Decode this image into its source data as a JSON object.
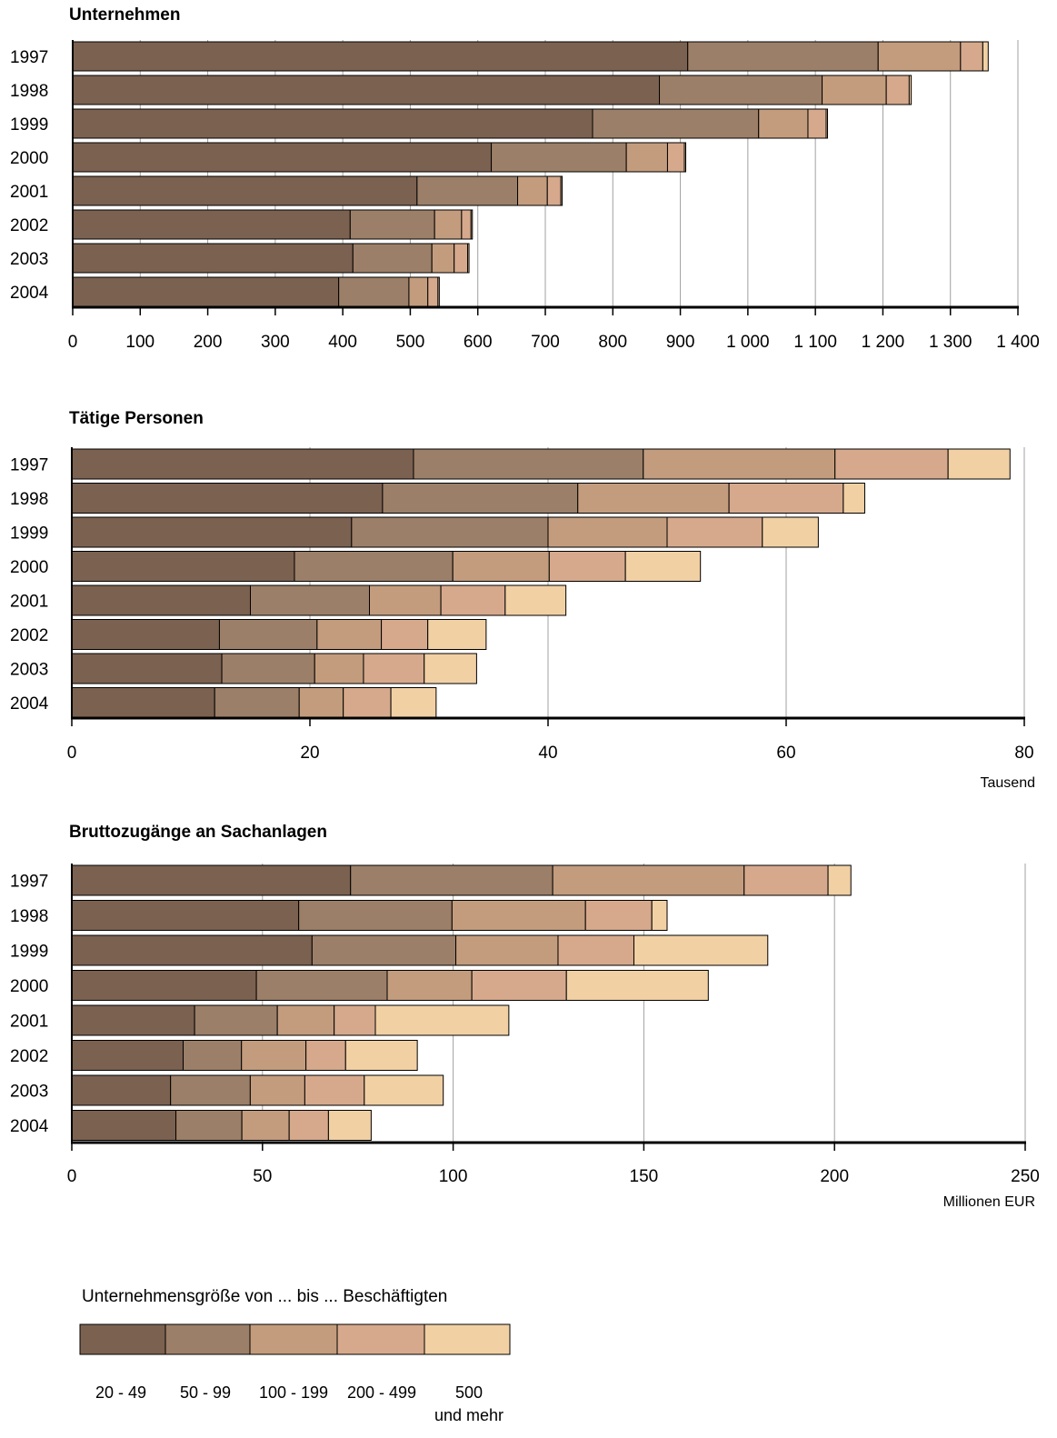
{
  "colors": [
    "#7b6150",
    "#9c7f68",
    "#c39c7d",
    "#d6a98c",
    "#f1d0a4"
  ],
  "legend": {
    "title": "Unternehmensgröße von ... bis ... Beschäftigten",
    "items": [
      {
        "label": "20 - 49"
      },
      {
        "label": "50 - 99"
      },
      {
        "label": "100 - 199"
      },
      {
        "label": "200 - 499"
      },
      {
        "label": "500",
        "label2": "und mehr"
      }
    ]
  },
  "chart_data": [
    {
      "type": "bar",
      "title": "Unternehmen",
      "unit": "",
      "categories": [
        "1997",
        "1998",
        "1999",
        "2000",
        "2001",
        "2002",
        "2003",
        "2004"
      ],
      "xlim": [
        0,
        1400
      ],
      "ticks": [
        0,
        100,
        200,
        300,
        400,
        500,
        600,
        700,
        800,
        900,
        1000,
        1100,
        1200,
        1300,
        1400
      ],
      "tick_labels": [
        "0",
        "100",
        "200",
        "300",
        "400",
        "500",
        "600",
        "700",
        "800",
        "900",
        "1 000",
        "1 100",
        "1 200",
        "1 300",
        "1 400"
      ],
      "stacked": true,
      "series": [
        {
          "name": "20 - 49",
          "values": [
            911,
            869,
            770,
            620,
            510,
            411,
            415,
            394
          ]
        },
        {
          "name": "50 - 99",
          "values": [
            282,
            241,
            246,
            200,
            149,
            125,
            117,
            104
          ]
        },
        {
          "name": "100 - 199",
          "values": [
            122,
            95,
            73,
            61,
            44,
            40,
            33,
            28
          ]
        },
        {
          "name": "200 - 499",
          "values": [
            33,
            34,
            27,
            25,
            20,
            14,
            20,
            15
          ]
        },
        {
          "name": "500 und mehr",
          "values": [
            8,
            3,
            2,
            2,
            2,
            2,
            2,
            2
          ]
        }
      ]
    },
    {
      "type": "bar",
      "title": "Tätige Personen",
      "unit": "Tausend",
      "categories": [
        "1997",
        "1998",
        "1999",
        "2000",
        "2001",
        "2002",
        "2003",
        "2004"
      ],
      "xlim": [
        0,
        80
      ],
      "ticks": [
        0,
        20,
        40,
        60,
        80
      ],
      "tick_labels": [
        "0",
        "20",
        "40",
        "60",
        "80"
      ],
      "stacked": true,
      "series": [
        {
          "name": "20 - 49",
          "values": [
            28.7,
            26.1,
            23.5,
            18.7,
            15.0,
            12.4,
            12.6,
            12.0
          ]
        },
        {
          "name": "50 - 99",
          "values": [
            19.3,
            16.4,
            16.5,
            13.3,
            10.0,
            8.2,
            7.8,
            7.1
          ]
        },
        {
          "name": "100 - 199",
          "values": [
            16.1,
            12.7,
            10.0,
            8.1,
            6.0,
            5.4,
            4.1,
            3.7
          ]
        },
        {
          "name": "200 - 499",
          "values": [
            9.5,
            9.6,
            8.0,
            6.4,
            5.4,
            3.9,
            5.1,
            4.0
          ]
        },
        {
          "name": "500 und mehr",
          "values": [
            5.2,
            1.8,
            4.7,
            6.3,
            5.1,
            4.9,
            4.4,
            3.8
          ]
        }
      ]
    },
    {
      "type": "bar",
      "title": "Bruttozugänge an Sachanlagen",
      "unit": "Millionen EUR",
      "categories": [
        "1997",
        "1998",
        "1999",
        "2000",
        "2001",
        "2002",
        "2003",
        "2004"
      ],
      "xlim": [
        0,
        250
      ],
      "ticks": [
        0,
        50,
        100,
        150,
        200,
        250
      ],
      "tick_labels": [
        "0",
        "50",
        "100",
        "150",
        "200",
        "250"
      ],
      "stacked": true,
      "series": [
        {
          "name": "20 - 49",
          "values": [
            73.1,
            59.5,
            63.0,
            48.4,
            32.2,
            29.2,
            25.9,
            27.3
          ]
        },
        {
          "name": "50 - 99",
          "values": [
            53.0,
            40.2,
            37.7,
            34.3,
            21.7,
            15.3,
            20.9,
            17.3
          ]
        },
        {
          "name": "100 - 199",
          "values": [
            50.2,
            35.0,
            26.8,
            22.2,
            14.9,
            16.9,
            14.3,
            12.4
          ]
        },
        {
          "name": "200 - 499",
          "values": [
            22.0,
            17.4,
            19.9,
            24.8,
            10.8,
            10.4,
            15.6,
            10.3
          ]
        },
        {
          "name": "500 und mehr",
          "values": [
            6.0,
            4.0,
            35.1,
            37.2,
            35.0,
            18.8,
            20.7,
            11.2
          ]
        }
      ]
    }
  ]
}
